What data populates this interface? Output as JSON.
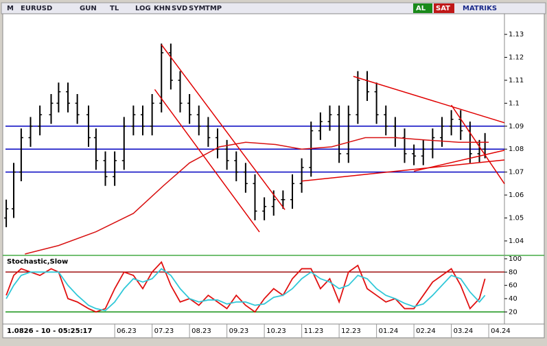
{
  "toolbar": [
    "M",
    "EURUSD",
    "GUN",
    "TL",
    "LOG",
    "KHN",
    "SVD",
    "SYM",
    "TMP",
    "AL",
    "SAT",
    "MATRIKS"
  ],
  "status": "1.0826 - 10 - 05:25:17",
  "chart_data": [
    {
      "type": "ohlc",
      "xlim": [
        2.08,
        15.42
      ],
      "xticks": [
        {
          "value": 5,
          "label": "06.23"
        },
        {
          "value": 6,
          "label": "07.23"
        },
        {
          "value": 7,
          "label": "08.23"
        },
        {
          "value": 8,
          "label": "09.23"
        },
        {
          "value": 9,
          "label": "10.23"
        },
        {
          "value": 10,
          "label": "11.23"
        },
        {
          "value": 11,
          "label": "12.23"
        },
        {
          "value": 12,
          "label": "01.24"
        },
        {
          "value": 13,
          "label": "02.24"
        },
        {
          "value": 14,
          "label": "03.24"
        },
        {
          "value": 15,
          "label": "04.24"
        }
      ],
      "ylim": [
        1.0343,
        1.139
      ],
      "yticks": [
        1.04,
        1.05,
        1.06,
        1.07,
        1.08,
        1.09,
        1.1,
        1.11,
        1.12,
        1.13
      ],
      "color": "#000000",
      "x": [
        2.1,
        2.3,
        2.5,
        2.75,
        3.0,
        3.3,
        3.5,
        3.75,
        4.0,
        4.3,
        4.5,
        4.75,
        5.0,
        5.25,
        5.5,
        5.75,
        6.0,
        6.25,
        6.5,
        6.75,
        7.0,
        7.25,
        7.5,
        7.75,
        8.0,
        8.25,
        8.5,
        8.75,
        9.0,
        9.25,
        9.5,
        9.75,
        10.0,
        10.25,
        10.5,
        10.75,
        11.0,
        11.25,
        11.5,
        11.75,
        12.0,
        12.25,
        12.5,
        12.75,
        13.0,
        13.25,
        13.5,
        13.75,
        14.0,
        14.25,
        14.5,
        14.75,
        14.9
      ],
      "open": [
        1.05,
        1.054,
        1.07,
        1.085,
        1.09,
        1.095,
        1.1,
        1.105,
        1.1,
        1.095,
        1.085,
        1.075,
        1.068,
        1.075,
        1.09,
        1.095,
        1.09,
        1.1,
        1.122,
        1.11,
        1.1,
        1.095,
        1.09,
        1.085,
        1.08,
        1.075,
        1.07,
        1.065,
        1.053,
        1.055,
        1.058,
        1.058,
        1.065,
        1.072,
        1.088,
        1.092,
        1.095,
        1.078,
        1.095,
        1.11,
        1.105,
        1.095,
        1.09,
        1.085,
        1.078,
        1.077,
        1.08,
        1.085,
        1.09,
        1.093,
        1.088,
        1.078,
        1.08
      ],
      "high": [
        1.058,
        1.074,
        1.089,
        1.094,
        1.099,
        1.104,
        1.109,
        1.109,
        1.104,
        1.099,
        1.089,
        1.079,
        1.079,
        1.094,
        1.099,
        1.099,
        1.104,
        1.126,
        1.126,
        1.114,
        1.104,
        1.099,
        1.094,
        1.089,
        1.084,
        1.079,
        1.074,
        1.069,
        1.059,
        1.062,
        1.062,
        1.069,
        1.076,
        1.092,
        1.096,
        1.099,
        1.099,
        1.099,
        1.114,
        1.114,
        1.109,
        1.099,
        1.094,
        1.089,
        1.082,
        1.084,
        1.089,
        1.094,
        1.097,
        1.097,
        1.092,
        1.084,
        1.087
      ],
      "low": [
        1.046,
        1.05,
        1.066,
        1.081,
        1.086,
        1.091,
        1.096,
        1.096,
        1.091,
        1.081,
        1.071,
        1.064,
        1.064,
        1.071,
        1.086,
        1.086,
        1.086,
        1.096,
        1.106,
        1.096,
        1.091,
        1.086,
        1.081,
        1.076,
        1.071,
        1.066,
        1.061,
        1.049,
        1.049,
        1.051,
        1.054,
        1.054,
        1.061,
        1.068,
        1.084,
        1.088,
        1.074,
        1.074,
        1.091,
        1.101,
        1.091,
        1.086,
        1.081,
        1.074,
        1.073,
        1.073,
        1.076,
        1.081,
        1.086,
        1.084,
        1.074,
        1.074,
        1.076
      ],
      "close": [
        1.054,
        1.07,
        1.085,
        1.09,
        1.095,
        1.1,
        1.105,
        1.1,
        1.095,
        1.085,
        1.075,
        1.068,
        1.075,
        1.09,
        1.095,
        1.09,
        1.1,
        1.122,
        1.11,
        1.1,
        1.095,
        1.09,
        1.085,
        1.08,
        1.075,
        1.07,
        1.065,
        1.053,
        1.055,
        1.058,
        1.058,
        1.065,
        1.072,
        1.088,
        1.092,
        1.095,
        1.078,
        1.095,
        1.11,
        1.105,
        1.095,
        1.09,
        1.085,
        1.078,
        1.077,
        1.08,
        1.085,
        1.09,
        1.093,
        1.088,
        1.078,
        1.08,
        1.083
      ],
      "hlines": [
        {
          "value": 1.09,
          "color": "#0000c0"
        },
        {
          "value": 1.08,
          "color": "#0000c0"
        },
        {
          "value": 1.07,
          "color": "#0000c0"
        }
      ],
      "ma": {
        "color": "#d81010",
        "x": [
          2.6,
          3.5,
          4.5,
          5.5,
          6.3,
          7.0,
          7.8,
          8.5,
          9.3,
          10.0,
          10.8,
          11.7,
          12.5,
          13.3,
          14.2,
          15.0
        ],
        "y": [
          1.0343,
          1.038,
          1.044,
          1.052,
          1.064,
          1.074,
          1.081,
          1.083,
          1.082,
          1.08,
          1.081,
          1.085,
          1.085,
          1.084,
          1.083,
          1.083
        ]
      },
      "trendlines": [
        {
          "color": "#e00000",
          "x": [
            6.25,
            9.55
          ],
          "y": [
            1.1255,
            1.0536
          ]
        },
        {
          "color": "#e00000",
          "x": [
            6.07,
            8.87
          ],
          "y": [
            1.106,
            1.0439
          ]
        },
        {
          "color": "#e00000",
          "x": [
            11.38,
            15.42
          ],
          "y": [
            1.1117,
            1.0915
          ]
        },
        {
          "color": "#e00000",
          "x": [
            10.0,
            15.42
          ],
          "y": [
            1.0661,
            1.0753
          ]
        },
        {
          "color": "#e00000",
          "x": [
            14.0,
            15.42
          ],
          "y": [
            1.0992,
            1.0649
          ]
        },
        {
          "color": "#e00000",
          "x": [
            13.0,
            15.42
          ],
          "y": [
            1.0704,
            1.0795
          ]
        }
      ]
    },
    {
      "type": "line",
      "title": "Stochastic,Slow",
      "xlim": [
        2.08,
        15.42
      ],
      "ylim": [
        8,
        102
      ],
      "yticks": [
        20,
        40,
        60,
        80,
        100
      ],
      "hlines": [
        {
          "value": 80,
          "color": "#a01010"
        },
        {
          "value": 20,
          "color": "#109010"
        }
      ],
      "x": [
        2.1,
        2.3,
        2.5,
        2.75,
        3.0,
        3.3,
        3.5,
        3.75,
        4.0,
        4.3,
        4.5,
        4.75,
        5.0,
        5.25,
        5.5,
        5.75,
        6.0,
        6.25,
        6.5,
        6.75,
        7.0,
        7.25,
        7.5,
        7.75,
        8.0,
        8.25,
        8.5,
        8.75,
        9.0,
        9.25,
        9.5,
        9.75,
        10.0,
        10.25,
        10.5,
        10.75,
        11.0,
        11.25,
        11.5,
        11.75,
        12.0,
        12.25,
        12.5,
        12.75,
        13.0,
        13.25,
        13.5,
        13.75,
        14.0,
        14.25,
        14.5,
        14.75,
        14.9
      ],
      "series": [
        {
          "color": "#e01010",
          "values": [
            45,
            75,
            85,
            80,
            75,
            85,
            80,
            40,
            35,
            25,
            20,
            25,
            55,
            80,
            75,
            55,
            80,
            95,
            60,
            35,
            40,
            30,
            45,
            35,
            25,
            45,
            30,
            20,
            40,
            55,
            45,
            70,
            85,
            85,
            55,
            70,
            35,
            80,
            90,
            55,
            45,
            35,
            40,
            25,
            25,
            45,
            65,
            75,
            85,
            60,
            25,
            40,
            70
          ]
        },
        {
          "color": "#30c8d8",
          "values": [
            40,
            60,
            75,
            80,
            80,
            80,
            80,
            60,
            45,
            30,
            25,
            22,
            35,
            55,
            70,
            65,
            70,
            85,
            75,
            55,
            40,
            35,
            38,
            38,
            32,
            35,
            35,
            30,
            32,
            42,
            45,
            55,
            70,
            80,
            70,
            65,
            55,
            60,
            75,
            70,
            55,
            45,
            40,
            33,
            28,
            32,
            45,
            60,
            75,
            70,
            50,
            35,
            45
          ]
        }
      ]
    }
  ]
}
